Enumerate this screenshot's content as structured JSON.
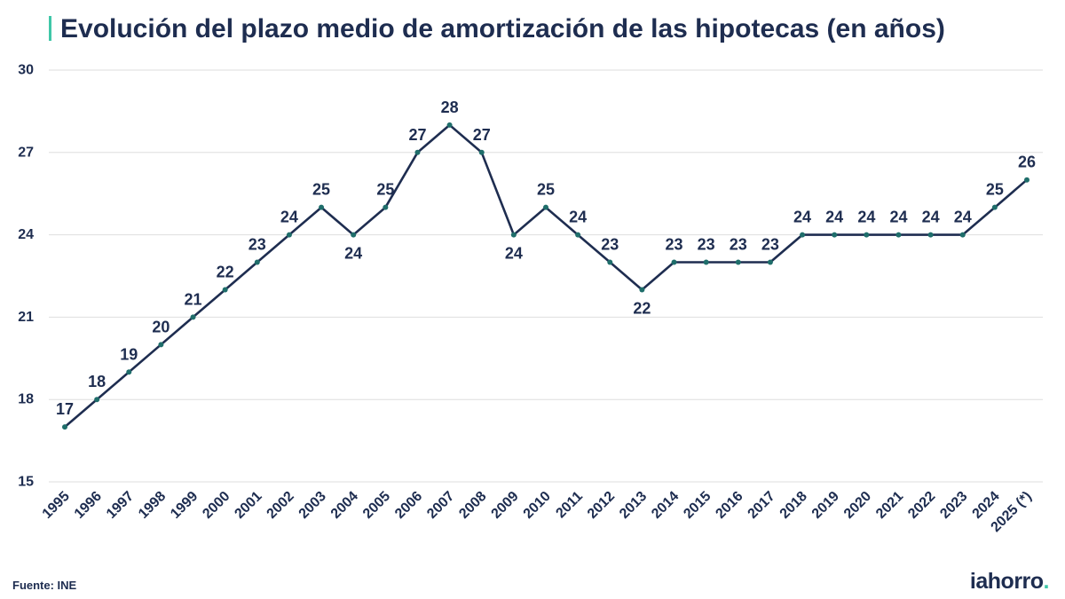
{
  "colors": {
    "accent": "#3fc7a8",
    "text": "#1e2d50",
    "line": "#1e2d50",
    "marker": "#1f6e6b",
    "grid": "#dedede",
    "background": "#ffffff"
  },
  "source": "Fuente: INE",
  "logo": {
    "text": "iahorro",
    "dot": "."
  },
  "chart_data": {
    "type": "line",
    "title": "Evolución del plazo medio de amortización de las hipotecas (en años)",
    "categories": [
      "1995",
      "1996",
      "1997",
      "1998",
      "1999",
      "2000",
      "2001",
      "2002",
      "2003",
      "2004",
      "2005",
      "2006",
      "2007",
      "2008",
      "2009",
      "2010",
      "2011",
      "2012",
      "2013",
      "2014",
      "2015",
      "2016",
      "2017",
      "2018",
      "2019",
      "2020",
      "2021",
      "2022",
      "2023",
      "2024",
      "2025 (*)"
    ],
    "series": [
      {
        "values": [
          17,
          18,
          19,
          20,
          21,
          22,
          23,
          24,
          25,
          24,
          25,
          27,
          28,
          27,
          24,
          25,
          24,
          23,
          22,
          23,
          23,
          23,
          23,
          24,
          24,
          24,
          24,
          24,
          24,
          25,
          26
        ]
      }
    ],
    "ylim": [
      15,
      30
    ],
    "yticks": [
      15,
      18,
      21,
      24,
      27,
      30
    ],
    "grid": true,
    "markers": true,
    "data_labels": true
  }
}
